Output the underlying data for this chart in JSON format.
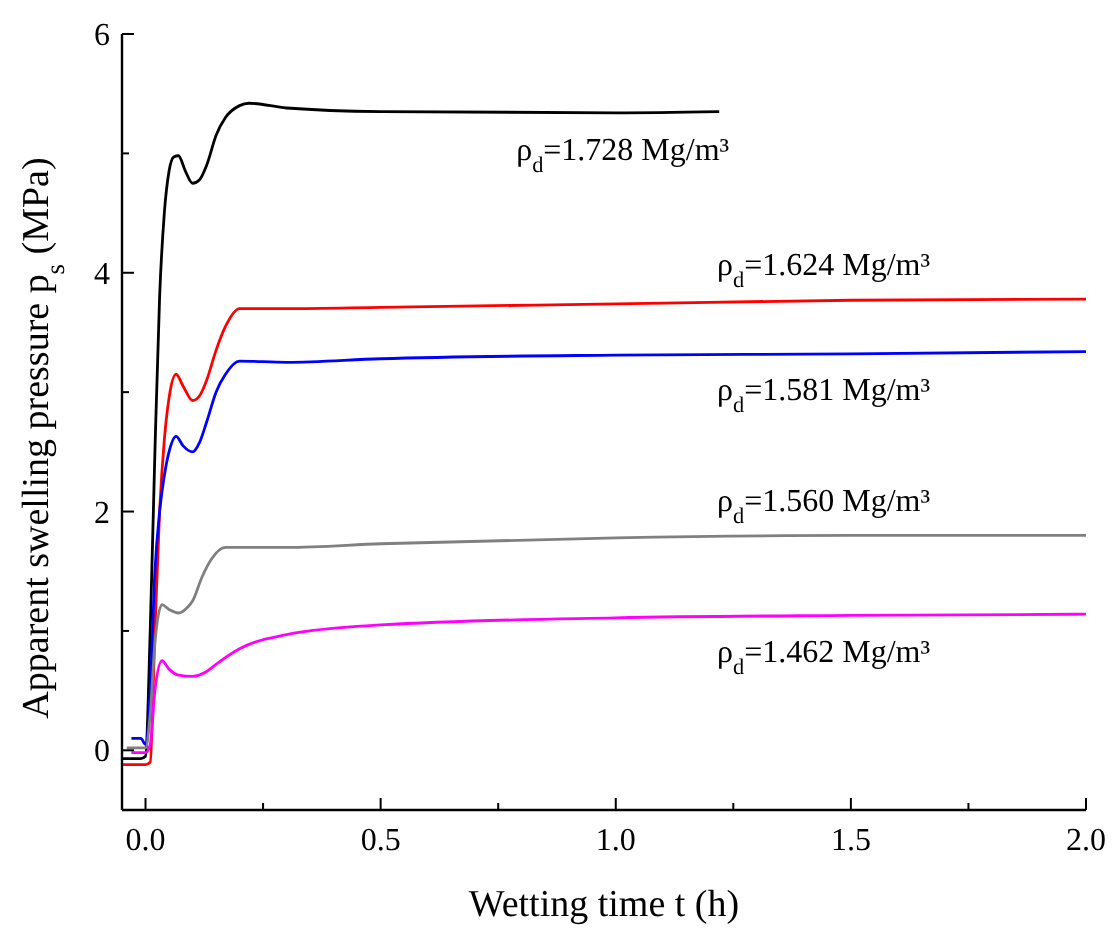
{
  "chart_data": {
    "type": "line",
    "xlabel": "Wetting time t (h)",
    "ylabel": "Apparent swelling pressure p$_{s}$ (MPa)",
    "xlim": [
      -0.05,
      2.0
    ],
    "ylim": [
      -0.5,
      6
    ],
    "xticks": [
      {
        "value": 0,
        "label": "0.0"
      },
      {
        "value": 0.25,
        "label": null
      },
      0.5,
      {
        "value": 0.75,
        "label": null
      },
      {
        "value": 1,
        "label": "1.0"
      },
      {
        "value": 1.25,
        "label": null
      },
      1.5,
      {
        "value": 1.75,
        "label": null
      },
      {
        "value": 2,
        "label": "2.0"
      }
    ],
    "yticks": [
      0,
      {
        "value": 1,
        "label": null
      },
      2,
      {
        "value": 3,
        "label": null
      },
      4,
      {
        "value": 5,
        "label": null
      },
      6
    ],
    "grid": false,
    "line_style": "solid",
    "series": [
      {
        "name": "ρ$_{d}$=1.728 Mg/m³",
        "color": "#000000",
        "x": [
          -0.05,
          -0.01,
          0,
          0.01,
          0.02,
          0.03,
          0.04,
          0.05,
          0.06,
          0.07,
          0.085,
          0.1,
          0.115,
          0.13,
          0.15,
          0.17,
          0.2,
          0.22,
          0.3,
          0.5,
          1.0,
          1.22
        ],
        "values": [
          -0.07,
          -0.07,
          -0.05,
          1.0,
          2.5,
          3.8,
          4.5,
          4.85,
          4.97,
          4.98,
          4.85,
          4.75,
          4.78,
          4.9,
          5.15,
          5.3,
          5.4,
          5.42,
          5.38,
          5.35,
          5.34,
          5.35
        ]
      },
      {
        "name": "ρ$_{d}$=1.624 Mg/m³",
        "color": "#ff0000",
        "x": [
          -0.05,
          0.0,
          0.01,
          0.02,
          0.03,
          0.04,
          0.05,
          0.065,
          0.08,
          0.1,
          0.115,
          0.13,
          0.15,
          0.17,
          0.2,
          0.3,
          0.5,
          1.0,
          1.5,
          2.0
        ],
        "values": [
          -0.12,
          -0.12,
          -0.1,
          1.0,
          2.0,
          2.6,
          2.95,
          3.15,
          3.05,
          2.93,
          2.97,
          3.1,
          3.35,
          3.55,
          3.7,
          3.7,
          3.71,
          3.74,
          3.77,
          3.78
        ]
      },
      {
        "name": "ρ$_{d}$=1.581 Mg/m³",
        "color": "#0000ff",
        "x": [
          -0.03,
          -0.01,
          0.0,
          0.01,
          0.02,
          0.03,
          0.04,
          0.05,
          0.065,
          0.08,
          0.1,
          0.115,
          0.13,
          0.15,
          0.17,
          0.2,
          0.3,
          0.5,
          1.0,
          1.5,
          2.0
        ],
        "values": [
          0.1,
          0.1,
          0.05,
          0.5,
          1.5,
          2.0,
          2.3,
          2.5,
          2.63,
          2.55,
          2.5,
          2.58,
          2.75,
          3.0,
          3.15,
          3.26,
          3.25,
          3.28,
          3.31,
          3.32,
          3.34
        ]
      },
      {
        "name": "ρ$_{d}$=1.560 Mg/m³",
        "color": "#808080",
        "x": [
          -0.04,
          0.0,
          0.01,
          0.02,
          0.035,
          0.05,
          0.07,
          0.09,
          0.1,
          0.12,
          0.14,
          0.17,
          0.3,
          0.5,
          1.0,
          1.5,
          2.0
        ],
        "values": [
          0.02,
          0.02,
          0.3,
          0.9,
          1.22,
          1.18,
          1.15,
          1.2,
          1.25,
          1.45,
          1.6,
          1.7,
          1.7,
          1.73,
          1.78,
          1.8,
          1.8
        ]
      },
      {
        "name": "ρ$_{d}$=1.462 Mg/m³",
        "color": "#ff00ff",
        "x": [
          -0.03,
          0.0,
          0.01,
          0.02,
          0.035,
          0.05,
          0.07,
          0.1,
          0.13,
          0.15,
          0.2,
          0.3,
          0.5,
          1.0,
          1.5,
          2.0
        ],
        "values": [
          -0.02,
          -0.02,
          0.05,
          0.5,
          0.75,
          0.68,
          0.63,
          0.62,
          0.66,
          0.72,
          0.85,
          0.97,
          1.05,
          1.11,
          1.13,
          1.14
        ]
      }
    ]
  }
}
